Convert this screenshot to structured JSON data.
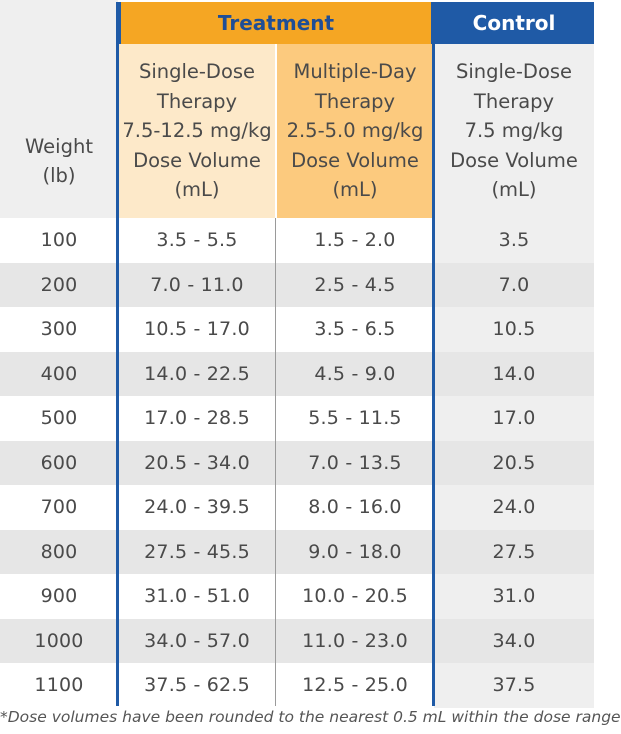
{
  "colors": {
    "treatment_header_bg": "#f5a623",
    "treatment_header_text": "#1f4e96",
    "control_header_bg": "#1f5aa6",
    "control_header_text": "#ffffff",
    "single_dose_col_bg": "#fde9c9",
    "multi_day_col_bg": "#fcca7e",
    "row_alt_bg": "#e6e6e6",
    "border_blue": "#1f5aa6"
  },
  "groups": {
    "treatment": "Treatment",
    "control": "Control"
  },
  "columns": {
    "weight": [
      "Weight",
      "(lb)"
    ],
    "single_dose": [
      "Single-Dose",
      "Therapy",
      "7.5-12.5 mg/kg",
      "Dose Volume",
      "(mL)"
    ],
    "multiple_day": [
      "Multiple-Day",
      "Therapy",
      "2.5-5.0 mg/kg",
      "Dose Volume",
      "(mL)"
    ],
    "control_single_dose": [
      "Single-Dose",
      "Therapy",
      "7.5 mg/kg",
      "Dose Volume",
      "(mL)"
    ]
  },
  "rows": [
    {
      "weight": "100",
      "single": "3.5 - 5.5",
      "multi": "1.5 - 2.0",
      "control": "3.5"
    },
    {
      "weight": "200",
      "single": "7.0 - 11.0",
      "multi": "2.5 - 4.5",
      "control": "7.0"
    },
    {
      "weight": "300",
      "single": "10.5 - 17.0",
      "multi": "3.5 - 6.5",
      "control": "10.5"
    },
    {
      "weight": "400",
      "single": "14.0 - 22.5",
      "multi": "4.5 - 9.0",
      "control": "14.0"
    },
    {
      "weight": "500",
      "single": "17.0 - 28.5",
      "multi": "5.5 - 11.5",
      "control": "17.0"
    },
    {
      "weight": "600",
      "single": "20.5 - 34.0",
      "multi": "7.0 - 13.5",
      "control": "20.5"
    },
    {
      "weight": "700",
      "single": "24.0 - 39.5",
      "multi": "8.0 - 16.0",
      "control": "24.0"
    },
    {
      "weight": "800",
      "single": "27.5 - 45.5",
      "multi": "9.0 - 18.0",
      "control": "27.5"
    },
    {
      "weight": "900",
      "single": "31.0 - 51.0",
      "multi": "10.0 - 20.5",
      "control": "31.0"
    },
    {
      "weight": "1000",
      "single": "34.0 - 57.0",
      "multi": "11.0 - 23.0",
      "control": "34.0"
    },
    {
      "weight": "1100",
      "single": "37.5 - 62.5",
      "multi": "12.5 - 25.0",
      "control": "37.5"
    }
  ],
  "footnote": "*Dose volumes have been rounded to the nearest 0.5 mL within the dose range"
}
